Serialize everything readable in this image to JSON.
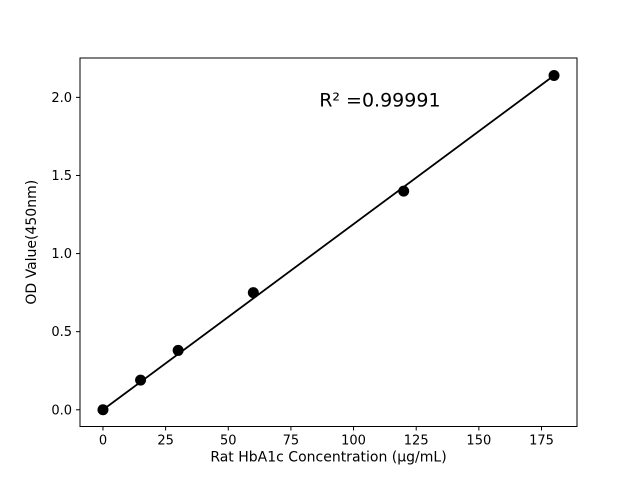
{
  "chart_data": {
    "type": "scatter",
    "title": "",
    "xlabel": "Rat HbA1c Concentration (μg/mL)",
    "ylabel": "OD Value(450nm)",
    "x": [
      0,
      15,
      30,
      60,
      120,
      180
    ],
    "y": [
      0.0,
      0.19,
      0.38,
      0.75,
      1.4,
      2.14
    ],
    "fit_line": {
      "x": [
        0,
        180
      ],
      "y": [
        0.0,
        2.14
      ]
    },
    "annotation": {
      "text": "R² =0.99991",
      "x": 110.5,
      "y": 1.98
    },
    "x_ticks": [
      0,
      25,
      50,
      75,
      100,
      125,
      150,
      175
    ],
    "y_ticks": [
      "0.0",
      "0.5",
      "1.0",
      "1.5",
      "2.0"
    ],
    "xlim": [
      -9.17,
      189.17
    ],
    "ylim": [
      -0.107,
      2.252
    ],
    "grid": false,
    "legend": "none",
    "colors": {
      "marker": "#000000",
      "line": "#000000",
      "spine": "#000000",
      "background": "#ffffff"
    },
    "style": {
      "marker_radius": 5.5,
      "line_width": 1.8,
      "spine_width": 1,
      "tick_length": 4,
      "tick_font_size": 13,
      "label_font_size": 14,
      "annotation_font_size": 19
    },
    "layout": {
      "figure_width": 640,
      "figure_height": 480,
      "axes_left": 80,
      "axes_top": 58,
      "axes_width": 497,
      "axes_height": 368.5
    }
  }
}
